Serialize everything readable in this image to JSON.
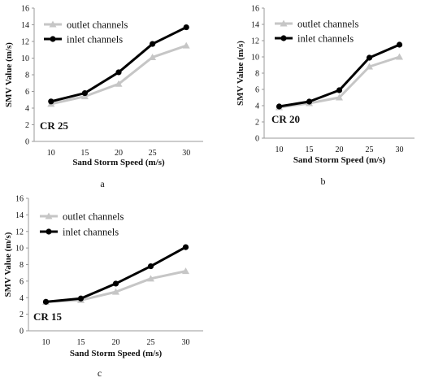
{
  "chart_data": [
    {
      "type": "line",
      "annotation": "CR 25",
      "panel_label": "a",
      "xlabel": "Sand Storm Speed (m/s)",
      "ylabel": "SMV Value (m/s)",
      "x": [
        10,
        15,
        20,
        25,
        30
      ],
      "ylim": [
        0,
        16
      ],
      "yticks": [
        0,
        2,
        4,
        6,
        8,
        10,
        12,
        14,
        16
      ],
      "grid": false,
      "legend_position": "top-left",
      "series": [
        {
          "name": "outlet channels",
          "marker": "triangle",
          "color": "#c6c6c6",
          "values": [
            4.5,
            5.4,
            6.9,
            10.1,
            11.5
          ]
        },
        {
          "name": "inlet channels",
          "marker": "circle",
          "color": "#000000",
          "values": [
            4.8,
            5.8,
            8.3,
            11.7,
            13.7
          ]
        }
      ]
    },
    {
      "type": "line",
      "annotation": "CR 20",
      "panel_label": "b",
      "xlabel": "Sand Storm Speed (m/s)",
      "ylabel": "SMV Value (m/s)",
      "x": [
        10,
        15,
        20,
        25,
        30
      ],
      "ylim": [
        0,
        16
      ],
      "yticks": [
        0,
        2,
        4,
        6,
        8,
        10,
        12,
        14,
        16
      ],
      "grid": false,
      "legend_position": "top-left",
      "series": [
        {
          "name": "outlet channels",
          "marker": "triangle",
          "color": "#c6c6c6",
          "values": [
            3.8,
            4.3,
            5.0,
            8.8,
            10.0
          ]
        },
        {
          "name": "inlet channels",
          "marker": "circle",
          "color": "#000000",
          "values": [
            3.9,
            4.5,
            5.9,
            9.9,
            11.5
          ]
        }
      ]
    },
    {
      "type": "line",
      "annotation": "CR 15",
      "panel_label": "c",
      "xlabel": "Sand Storm Speed (m/s)",
      "ylabel": "SMV Value (m/s)",
      "x": [
        10,
        15,
        20,
        25,
        30
      ],
      "ylim": [
        0,
        16
      ],
      "yticks": [
        0,
        2,
        4,
        6,
        8,
        10,
        12,
        14,
        16
      ],
      "grid": false,
      "legend_position": "top-left",
      "series": [
        {
          "name": "outlet channels",
          "marker": "triangle",
          "color": "#c6c6c6",
          "values": [
            3.5,
            3.7,
            4.7,
            6.3,
            7.2
          ]
        },
        {
          "name": "inlet channels",
          "marker": "circle",
          "color": "#000000",
          "values": [
            3.5,
            3.9,
            5.7,
            7.8,
            10.1
          ]
        }
      ]
    }
  ]
}
